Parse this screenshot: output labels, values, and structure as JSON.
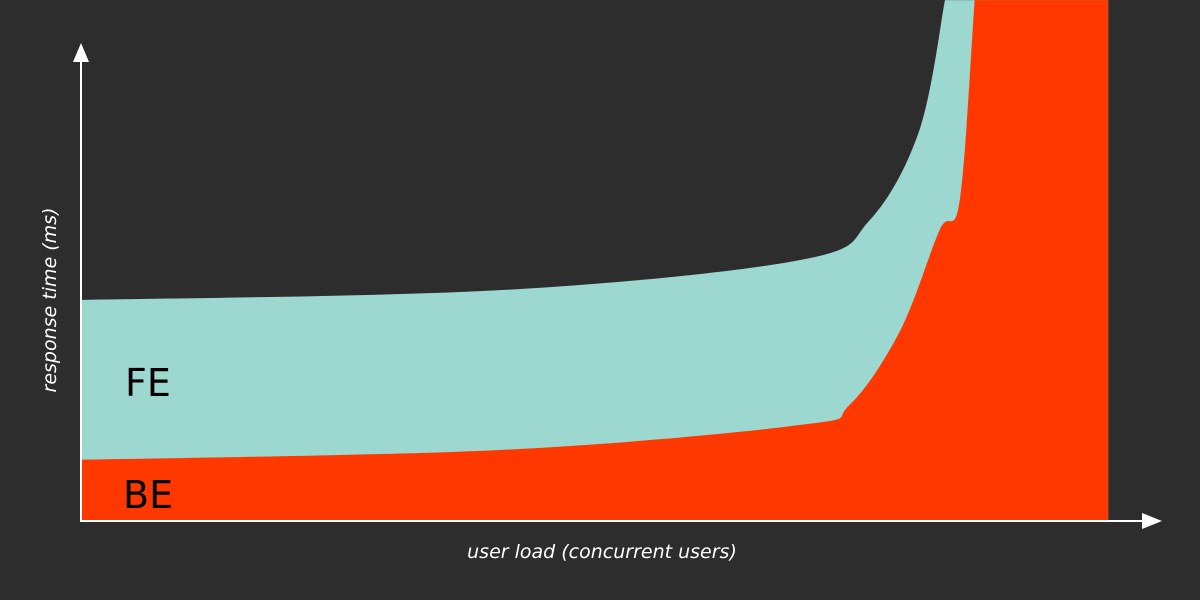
{
  "chart_data": {
    "type": "area",
    "stacked": true,
    "xlabel": "user load (concurrent users)",
    "ylabel": "response time (ms)",
    "xlim": [
      0,
      100
    ],
    "ylim": [
      0,
      100
    ],
    "grid": false,
    "legend": "none",
    "series": [
      {
        "name": "BE",
        "color": "#ff3800",
        "points": [
          [
            0,
            12.8
          ],
          [
            39.6,
            14.9
          ],
          [
            67.9,
            20.2
          ],
          [
            72.6,
            24.5
          ],
          [
            77.4,
            40.4
          ],
          [
            81.1,
            61.7
          ],
          [
            83.0,
            68.1
          ],
          [
            84.4,
            110.6
          ]
        ],
        "end_x": 97
      },
      {
        "name": "FE",
        "color": "#9cd8cf",
        "points": [
          [
            0,
            46.8
          ],
          [
            39.6,
            48.9
          ],
          [
            67.9,
            55.3
          ],
          [
            74.5,
            63.8
          ],
          [
            79.2,
            83.0
          ],
          [
            81.6,
            110.6
          ]
        ]
      }
    ]
  },
  "colors": {
    "background": "#2d2d2d",
    "axis": "#ffffff",
    "label_text": "#000000"
  }
}
